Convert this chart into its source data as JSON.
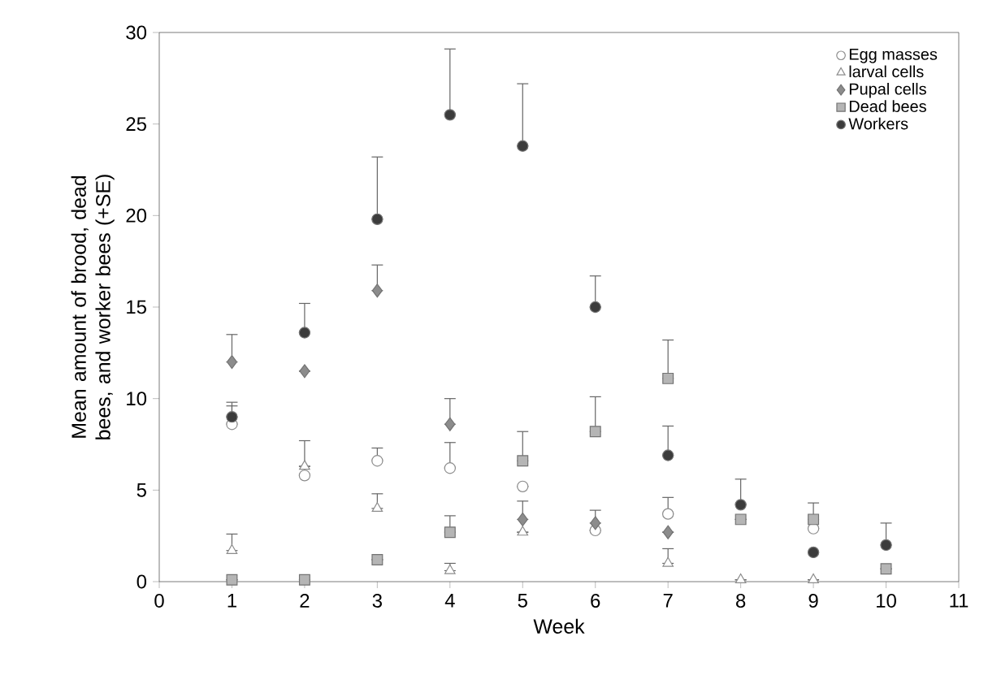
{
  "chart_data": {
    "type": "scatter",
    "xlabel": "Week",
    "ylabel": "Mean amount of brood, dead bees, and worker bees (+SE)",
    "x": [
      1,
      2,
      3,
      4,
      5,
      6,
      7,
      8,
      9,
      10
    ],
    "xlim": [
      0,
      11
    ],
    "xticks": [
      0,
      1,
      2,
      3,
      4,
      5,
      6,
      7,
      8,
      9,
      10,
      11
    ],
    "ylim": [
      0,
      30
    ],
    "yticks": [
      0,
      5,
      10,
      15,
      20,
      25,
      30
    ],
    "grid": false,
    "legend": "top right",
    "series": [
      {
        "name": "Egg masses",
        "color": "#ffffff",
        "marker": "circle",
        "values": [
          8.6,
          5.8,
          6.6,
          6.2,
          5.2,
          2.8,
          3.7,
          null,
          2.9,
          null
        ],
        "errors": [
          [
            8.6,
            9.6
          ],
          [
            5.8,
            7.7
          ],
          [
            6.6,
            7.3
          ],
          [
            6.2,
            7.6
          ],
          null,
          null,
          [
            3.7,
            4.6
          ],
          null,
          null,
          null
        ]
      },
      {
        "name": "larval cells",
        "color": "#ffffff",
        "marker": "triangle",
        "values": [
          1.7,
          6.3,
          4.0,
          0.6,
          2.7,
          null,
          1.0,
          0.1,
          0.1,
          null
        ],
        "errors": [
          [
            1.7,
            2.6
          ],
          null,
          [
            4.0,
            4.8
          ],
          [
            0.6,
            1.0
          ],
          null,
          null,
          [
            1.0,
            1.8
          ],
          null,
          null,
          null
        ]
      },
      {
        "name": "Pupal cells",
        "color": "#8c8c8c",
        "marker": "diamond",
        "values": [
          12.0,
          11.5,
          15.9,
          8.6,
          3.4,
          3.2,
          2.7,
          null,
          null,
          null
        ],
        "errors": [
          [
            12.0,
            13.5
          ],
          null,
          [
            15.9,
            17.3
          ],
          [
            8.6,
            10.0
          ],
          [
            3.4,
            4.4
          ],
          [
            3.2,
            3.9
          ],
          null,
          null,
          null,
          null
        ]
      },
      {
        "name": "Dead bees",
        "color": "#b5b5b5",
        "marker": "square",
        "values": [
          0.1,
          0.1,
          1.2,
          2.7,
          6.6,
          8.2,
          11.1,
          3.4,
          3.4,
          0.7
        ],
        "errors": [
          null,
          null,
          null,
          [
            2.7,
            3.6
          ],
          [
            6.6,
            8.2
          ],
          [
            8.2,
            10.1
          ],
          [
            11.1,
            13.2
          ],
          null,
          [
            3.4,
            4.3
          ],
          null
        ]
      },
      {
        "name": "Workers",
        "color": "#3c3c3c",
        "marker": "circle",
        "values": [
          9.0,
          13.6,
          19.8,
          25.5,
          23.8,
          15.0,
          6.9,
          4.2,
          1.6,
          2.0
        ],
        "errors": [
          [
            9.0,
            9.8
          ],
          [
            13.6,
            15.2
          ],
          [
            19.8,
            23.2
          ],
          [
            25.5,
            29.1
          ],
          [
            23.8,
            27.2
          ],
          [
            15.0,
            16.7
          ],
          [
            6.9,
            8.5
          ],
          [
            4.2,
            5.6
          ],
          null,
          [
            2.0,
            3.2
          ]
        ]
      }
    ]
  }
}
